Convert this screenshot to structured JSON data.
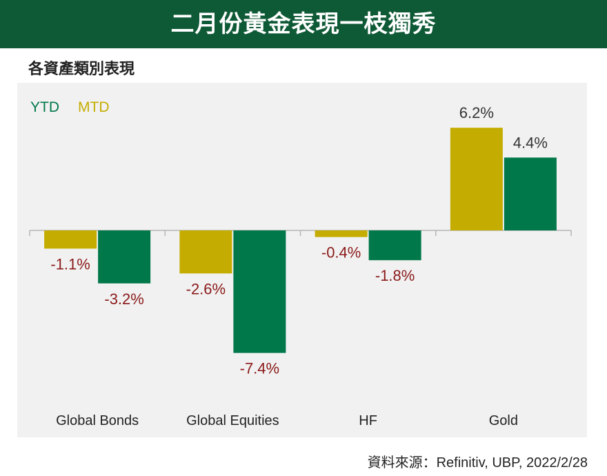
{
  "header": {
    "title": "二月份黃金表現一枝獨秀"
  },
  "subtitle": "各資產類別表現",
  "legend": {
    "ytd_label": "YTD",
    "mtd_label": "MTD"
  },
  "source": "資料來源：Refinitiv, UBP, 2022/2/28",
  "colors": {
    "header_bg": "#0f5a36",
    "ytd": "#00784a",
    "mtd": "#c4ad00",
    "negative_label": "#8b1a1a",
    "positive_label": "#333333",
    "panel_bg": "#f1f1f1"
  },
  "chart_data": {
    "type": "bar",
    "categories": [
      "Global Bonds",
      "Global Equities",
      "HF",
      "Gold"
    ],
    "series": [
      {
        "name": "MTD",
        "values": [
          -1.1,
          -2.6,
          -0.4,
          6.2
        ]
      },
      {
        "name": "YTD",
        "values": [
          -3.2,
          -7.4,
          -1.8,
          4.4
        ]
      }
    ],
    "value_labels": {
      "MTD": [
        "-1.1%",
        "-2.6%",
        "-0.4%",
        "6.2%"
      ],
      "YTD": [
        "-3.2%",
        "-7.4%",
        "-1.8%",
        "4.4%"
      ]
    },
    "xlabel": "",
    "ylabel": "",
    "ylim": [
      -8.5,
      7.5
    ],
    "grid": false,
    "legend_position": "top-left"
  }
}
